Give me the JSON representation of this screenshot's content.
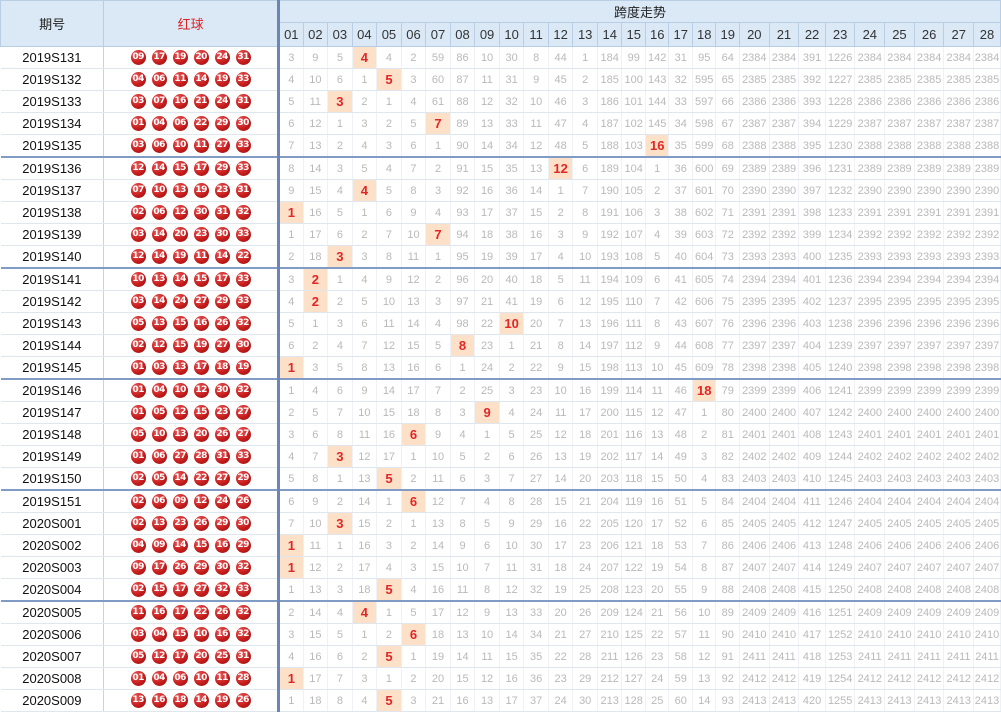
{
  "header": {
    "period_label": "期号",
    "red_label": "红球",
    "span_label": "跨度走势",
    "span_columns": [
      "01",
      "02",
      "03",
      "04",
      "05",
      "06",
      "07",
      "08",
      "09",
      "10",
      "11",
      "12",
      "13",
      "14",
      "15",
      "16",
      "17",
      "18",
      "19",
      "20",
      "21",
      "22",
      "23",
      "24",
      "25",
      "26",
      "27",
      "28"
    ]
  },
  "colors": {
    "header_bg": "#dbe9f7",
    "hit_bg": "#fde0c8",
    "hit_text": "#e12626",
    "ball_red": "#c81d1d",
    "missing_text": "#b9b9b9",
    "divider": "#6b86b5"
  },
  "rows": [
    {
      "period": "2019S131",
      "balls": [
        "09",
        "17",
        "19",
        "20",
        "24",
        "31"
      ],
      "values": [
        "3",
        "9",
        "5",
        "4",
        "4",
        "2",
        "59",
        "86",
        "10",
        "30",
        "8",
        "44",
        "1",
        "184",
        "99",
        "142",
        "31",
        "95",
        "64",
        "2384",
        "2384",
        "391",
        "1226",
        "2384",
        "2384",
        "2384",
        "2384",
        "2384"
      ],
      "hit": 4,
      "group_end": false
    },
    {
      "period": "2019S132",
      "balls": [
        "04",
        "06",
        "11",
        "14",
        "19",
        "33"
      ],
      "values": [
        "4",
        "10",
        "6",
        "1",
        "5",
        "3",
        "60",
        "87",
        "11",
        "31",
        "9",
        "45",
        "2",
        "185",
        "100",
        "143",
        "32",
        "595",
        "65",
        "2385",
        "2385",
        "392",
        "1227",
        "2385",
        "2385",
        "2385",
        "2385",
        "2385"
      ],
      "hit": 5,
      "group_end": false
    },
    {
      "period": "2019S133",
      "balls": [
        "03",
        "07",
        "16",
        "21",
        "24",
        "31"
      ],
      "values": [
        "5",
        "11",
        "3",
        "2",
        "1",
        "4",
        "61",
        "88",
        "12",
        "32",
        "10",
        "46",
        "3",
        "186",
        "101",
        "144",
        "33",
        "597",
        "66",
        "2386",
        "2386",
        "393",
        "1228",
        "2386",
        "2386",
        "2386",
        "2386",
        "2386"
      ],
      "hit": 3,
      "group_end": false
    },
    {
      "period": "2019S134",
      "balls": [
        "01",
        "04",
        "06",
        "22",
        "29",
        "30"
      ],
      "values": [
        "6",
        "12",
        "1",
        "3",
        "2",
        "5",
        "7",
        "89",
        "13",
        "33",
        "11",
        "47",
        "4",
        "187",
        "102",
        "145",
        "34",
        "598",
        "67",
        "2387",
        "2387",
        "394",
        "1229",
        "2387",
        "2387",
        "2387",
        "2387",
        "2387"
      ],
      "hit": 7,
      "group_end": false
    },
    {
      "period": "2019S135",
      "balls": [
        "03",
        "06",
        "10",
        "11",
        "27",
        "33"
      ],
      "values": [
        "7",
        "13",
        "2",
        "4",
        "3",
        "6",
        "1",
        "90",
        "14",
        "34",
        "12",
        "48",
        "5",
        "188",
        "103",
        "16",
        "35",
        "599",
        "68",
        "2388",
        "2388",
        "395",
        "1230",
        "2388",
        "2388",
        "2388",
        "2388",
        "2388"
      ],
      "hit": 16,
      "group_end": true
    },
    {
      "period": "2019S136",
      "balls": [
        "12",
        "14",
        "15",
        "17",
        "29",
        "33"
      ],
      "values": [
        "8",
        "14",
        "3",
        "5",
        "4",
        "7",
        "2",
        "91",
        "15",
        "35",
        "13",
        "12",
        "6",
        "189",
        "104",
        "1",
        "36",
        "600",
        "69",
        "2389",
        "2389",
        "396",
        "1231",
        "2389",
        "2389",
        "2389",
        "2389",
        "2389"
      ],
      "hit": 12,
      "group_end": false
    },
    {
      "period": "2019S137",
      "balls": [
        "07",
        "10",
        "13",
        "19",
        "23",
        "31"
      ],
      "values": [
        "9",
        "15",
        "4",
        "4",
        "5",
        "8",
        "3",
        "92",
        "16",
        "36",
        "14",
        "1",
        "7",
        "190",
        "105",
        "2",
        "37",
        "601",
        "70",
        "2390",
        "2390",
        "397",
        "1232",
        "2390",
        "2390",
        "2390",
        "2390",
        "2390"
      ],
      "hit": 4,
      "group_end": false
    },
    {
      "period": "2019S138",
      "balls": [
        "02",
        "06",
        "12",
        "30",
        "31",
        "32"
      ],
      "values": [
        "1",
        "16",
        "5",
        "1",
        "6",
        "9",
        "4",
        "93",
        "17",
        "37",
        "15",
        "2",
        "8",
        "191",
        "106",
        "3",
        "38",
        "602",
        "71",
        "2391",
        "2391",
        "398",
        "1233",
        "2391",
        "2391",
        "2391",
        "2391",
        "2391"
      ],
      "hit": 1,
      "group_end": false
    },
    {
      "period": "2019S139",
      "balls": [
        "03",
        "14",
        "20",
        "23",
        "30",
        "33"
      ],
      "values": [
        "1",
        "17",
        "6",
        "2",
        "7",
        "10",
        "7",
        "94",
        "18",
        "38",
        "16",
        "3",
        "9",
        "192",
        "107",
        "4",
        "39",
        "603",
        "72",
        "2392",
        "2392",
        "399",
        "1234",
        "2392",
        "2392",
        "2392",
        "2392",
        "2392"
      ],
      "hit": 7,
      "group_end": false
    },
    {
      "period": "2019S140",
      "balls": [
        "12",
        "14",
        "19",
        "11",
        "14",
        "22"
      ],
      "values": [
        "2",
        "18",
        "3",
        "3",
        "8",
        "11",
        "1",
        "95",
        "19",
        "39",
        "17",
        "4",
        "10",
        "193",
        "108",
        "5",
        "40",
        "604",
        "73",
        "2393",
        "2393",
        "400",
        "1235",
        "2393",
        "2393",
        "2393",
        "2393",
        "2393"
      ],
      "hit": 3,
      "group_end": true
    },
    {
      "period": "2019S141",
      "balls": [
        "10",
        "13",
        "14",
        "15",
        "17",
        "33"
      ],
      "values": [
        "3",
        "2",
        "1",
        "4",
        "9",
        "12",
        "2",
        "96",
        "20",
        "40",
        "18",
        "5",
        "11",
        "194",
        "109",
        "6",
        "41",
        "605",
        "74",
        "2394",
        "2394",
        "401",
        "1236",
        "2394",
        "2394",
        "2394",
        "2394",
        "2394"
      ],
      "hit": 2,
      "group_end": false
    },
    {
      "period": "2019S142",
      "balls": [
        "03",
        "14",
        "24",
        "27",
        "29",
        "33"
      ],
      "values": [
        "4",
        "2",
        "2",
        "5",
        "10",
        "13",
        "3",
        "97",
        "21",
        "41",
        "19",
        "6",
        "12",
        "195",
        "110",
        "7",
        "42",
        "606",
        "75",
        "2395",
        "2395",
        "402",
        "1237",
        "2395",
        "2395",
        "2395",
        "2395",
        "2395"
      ],
      "hit": 2,
      "group_end": false
    },
    {
      "period": "2019S143",
      "balls": [
        "05",
        "13",
        "15",
        "16",
        "26",
        "32"
      ],
      "values": [
        "5",
        "1",
        "3",
        "6",
        "11",
        "14",
        "4",
        "98",
        "22",
        "10",
        "20",
        "7",
        "13",
        "196",
        "111",
        "8",
        "43",
        "607",
        "76",
        "2396",
        "2396",
        "403",
        "1238",
        "2396",
        "2396",
        "2396",
        "2396",
        "2396"
      ],
      "hit": 10,
      "group_end": false
    },
    {
      "period": "2019S144",
      "balls": [
        "02",
        "12",
        "15",
        "19",
        "27",
        "30"
      ],
      "values": [
        "6",
        "2",
        "4",
        "7",
        "12",
        "15",
        "5",
        "8",
        "23",
        "1",
        "21",
        "8",
        "14",
        "197",
        "112",
        "9",
        "44",
        "608",
        "77",
        "2397",
        "2397",
        "404",
        "1239",
        "2397",
        "2397",
        "2397",
        "2397",
        "2397"
      ],
      "hit": 8,
      "group_end": false
    },
    {
      "period": "2019S145",
      "balls": [
        "01",
        "03",
        "13",
        "17",
        "18",
        "19"
      ],
      "values": [
        "1",
        "3",
        "5",
        "8",
        "13",
        "16",
        "6",
        "1",
        "24",
        "2",
        "22",
        "9",
        "15",
        "198",
        "113",
        "10",
        "45",
        "609",
        "78",
        "2398",
        "2398",
        "405",
        "1240",
        "2398",
        "2398",
        "2398",
        "2398",
        "2398"
      ],
      "hit": 1,
      "group_end": true
    },
    {
      "period": "2019S146",
      "balls": [
        "01",
        "04",
        "10",
        "12",
        "30",
        "32"
      ],
      "values": [
        "1",
        "4",
        "6",
        "9",
        "14",
        "17",
        "7",
        "2",
        "25",
        "3",
        "23",
        "10",
        "16",
        "199",
        "114",
        "11",
        "46",
        "18",
        "79",
        "2399",
        "2399",
        "406",
        "1241",
        "2399",
        "2399",
        "2399",
        "2399",
        "2399"
      ],
      "hit": 18,
      "group_end": false
    },
    {
      "period": "2019S147",
      "balls": [
        "01",
        "05",
        "12",
        "15",
        "23",
        "27"
      ],
      "values": [
        "2",
        "5",
        "7",
        "10",
        "15",
        "18",
        "8",
        "3",
        "9",
        "4",
        "24",
        "11",
        "17",
        "200",
        "115",
        "12",
        "47",
        "1",
        "80",
        "2400",
        "2400",
        "407",
        "1242",
        "2400",
        "2400",
        "2400",
        "2400",
        "2400"
      ],
      "hit": 9,
      "group_end": false
    },
    {
      "period": "2019S148",
      "balls": [
        "05",
        "10",
        "13",
        "20",
        "26",
        "27"
      ],
      "values": [
        "3",
        "6",
        "8",
        "11",
        "16",
        "6",
        "9",
        "4",
        "1",
        "5",
        "25",
        "12",
        "18",
        "201",
        "116",
        "13",
        "48",
        "2",
        "81",
        "2401",
        "2401",
        "408",
        "1243",
        "2401",
        "2401",
        "2401",
        "2401",
        "2401"
      ],
      "hit": 6,
      "group_end": false
    },
    {
      "period": "2019S149",
      "balls": [
        "01",
        "06",
        "27",
        "28",
        "31",
        "33"
      ],
      "values": [
        "4",
        "7",
        "3",
        "12",
        "17",
        "1",
        "10",
        "5",
        "2",
        "6",
        "26",
        "13",
        "19",
        "202",
        "117",
        "14",
        "49",
        "3",
        "82",
        "2402",
        "2402",
        "409",
        "1244",
        "2402",
        "2402",
        "2402",
        "2402",
        "2402"
      ],
      "hit": 3,
      "group_end": false
    },
    {
      "period": "2019S150",
      "balls": [
        "02",
        "05",
        "14",
        "22",
        "27",
        "29"
      ],
      "values": [
        "5",
        "8",
        "1",
        "13",
        "5",
        "2",
        "11",
        "6",
        "3",
        "7",
        "27",
        "14",
        "20",
        "203",
        "118",
        "15",
        "50",
        "4",
        "83",
        "2403",
        "2403",
        "410",
        "1245",
        "2403",
        "2403",
        "2403",
        "2403",
        "2403"
      ],
      "hit": 5,
      "group_end": true
    },
    {
      "period": "2019S151",
      "balls": [
        "02",
        "06",
        "09",
        "12",
        "24",
        "26"
      ],
      "values": [
        "6",
        "9",
        "2",
        "14",
        "1",
        "6",
        "12",
        "7",
        "4",
        "8",
        "28",
        "15",
        "21",
        "204",
        "119",
        "16",
        "51",
        "5",
        "84",
        "2404",
        "2404",
        "411",
        "1246",
        "2404",
        "2404",
        "2404",
        "2404",
        "2404"
      ],
      "hit": 6,
      "group_end": false
    },
    {
      "period": "2020S001",
      "balls": [
        "02",
        "13",
        "23",
        "26",
        "29",
        "30"
      ],
      "values": [
        "7",
        "10",
        "3",
        "15",
        "2",
        "1",
        "13",
        "8",
        "5",
        "9",
        "29",
        "16",
        "22",
        "205",
        "120",
        "17",
        "52",
        "6",
        "85",
        "2405",
        "2405",
        "412",
        "1247",
        "2405",
        "2405",
        "2405",
        "2405",
        "2405"
      ],
      "hit": 3,
      "group_end": false
    },
    {
      "period": "2020S002",
      "balls": [
        "04",
        "09",
        "14",
        "15",
        "16",
        "29"
      ],
      "values": [
        "1",
        "11",
        "1",
        "16",
        "3",
        "2",
        "14",
        "9",
        "6",
        "10",
        "30",
        "17",
        "23",
        "206",
        "121",
        "18",
        "53",
        "7",
        "86",
        "2406",
        "2406",
        "413",
        "1248",
        "2406",
        "2406",
        "2406",
        "2406",
        "2406"
      ],
      "hit": 1,
      "group_end": false
    },
    {
      "period": "2020S003",
      "balls": [
        "09",
        "17",
        "26",
        "29",
        "30",
        "32"
      ],
      "values": [
        "1",
        "12",
        "2",
        "17",
        "4",
        "3",
        "15",
        "10",
        "7",
        "11",
        "31",
        "18",
        "24",
        "207",
        "122",
        "19",
        "54",
        "8",
        "87",
        "2407",
        "2407",
        "414",
        "1249",
        "2407",
        "2407",
        "2407",
        "2407",
        "2407"
      ],
      "hit": 1,
      "group_end": false
    },
    {
      "period": "2020S004",
      "balls": [
        "02",
        "15",
        "17",
        "27",
        "32",
        "33"
      ],
      "values": [
        "1",
        "13",
        "3",
        "18",
        "5",
        "4",
        "16",
        "11",
        "8",
        "12",
        "32",
        "19",
        "25",
        "208",
        "123",
        "20",
        "55",
        "9",
        "88",
        "2408",
        "2408",
        "415",
        "1250",
        "2408",
        "2408",
        "2408",
        "2408",
        "2408"
      ],
      "hit": 5,
      "group_end": true
    },
    {
      "period": "2020S005",
      "balls": [
        "11",
        "16",
        "17",
        "22",
        "26",
        "32"
      ],
      "values": [
        "2",
        "14",
        "4",
        "4",
        "1",
        "5",
        "17",
        "12",
        "9",
        "13",
        "33",
        "20",
        "26",
        "209",
        "124",
        "21",
        "56",
        "10",
        "89",
        "2409",
        "2409",
        "416",
        "1251",
        "2409",
        "2409",
        "2409",
        "2409",
        "2409"
      ],
      "hit": 4,
      "group_end": false
    },
    {
      "period": "2020S006",
      "balls": [
        "03",
        "04",
        "15",
        "10",
        "16",
        "32"
      ],
      "values": [
        "3",
        "15",
        "5",
        "1",
        "2",
        "6",
        "18",
        "13",
        "10",
        "14",
        "34",
        "21",
        "27",
        "210",
        "125",
        "22",
        "57",
        "11",
        "90",
        "2410",
        "2410",
        "417",
        "1252",
        "2410",
        "2410",
        "2410",
        "2410",
        "2410"
      ],
      "hit": 6,
      "group_end": false
    },
    {
      "period": "2020S007",
      "balls": [
        "05",
        "12",
        "17",
        "20",
        "25",
        "31"
      ],
      "values": [
        "4",
        "16",
        "6",
        "2",
        "5",
        "1",
        "19",
        "14",
        "11",
        "15",
        "35",
        "22",
        "28",
        "211",
        "126",
        "23",
        "58",
        "12",
        "91",
        "2411",
        "2411",
        "418",
        "1253",
        "2411",
        "2411",
        "2411",
        "2411",
        "2411"
      ],
      "hit": 5,
      "group_end": false
    },
    {
      "period": "2020S008",
      "balls": [
        "01",
        "04",
        "06",
        "10",
        "11",
        "28"
      ],
      "values": [
        "1",
        "17",
        "7",
        "3",
        "1",
        "2",
        "20",
        "15",
        "12",
        "16",
        "36",
        "23",
        "29",
        "212",
        "127",
        "24",
        "59",
        "13",
        "92",
        "2412",
        "2412",
        "419",
        "1254",
        "2412",
        "2412",
        "2412",
        "2412",
        "2412"
      ],
      "hit": 1,
      "group_end": false
    },
    {
      "period": "2020S009",
      "balls": [
        "13",
        "16",
        "18",
        "14",
        "19",
        "26"
      ],
      "values": [
        "1",
        "18",
        "8",
        "4",
        "5",
        "3",
        "21",
        "16",
        "13",
        "17",
        "37",
        "24",
        "30",
        "213",
        "128",
        "25",
        "60",
        "14",
        "93",
        "2413",
        "2413",
        "420",
        "1255",
        "2413",
        "2413",
        "2413",
        "2413",
        "2413"
      ],
      "hit": 5,
      "group_end": false
    }
  ]
}
